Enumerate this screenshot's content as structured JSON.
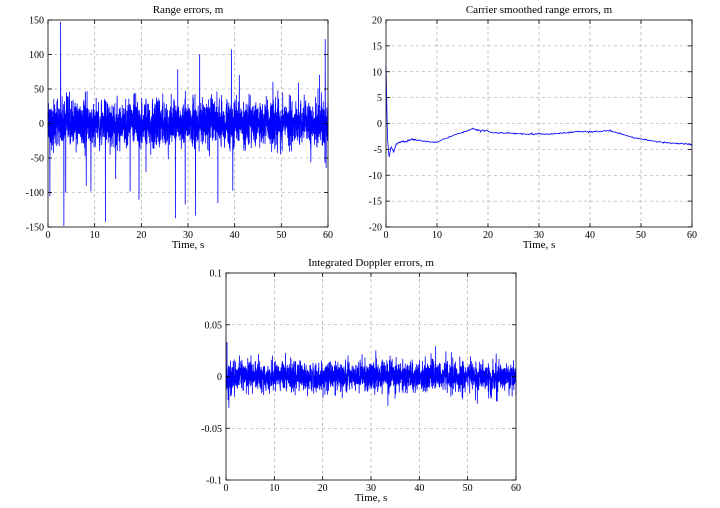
{
  "chart_data": [
    {
      "id": "range",
      "type": "line",
      "title": "Range errors, m",
      "xlabel": "Time, s",
      "ylabel": "",
      "xlim": [
        0,
        60
      ],
      "ylim": [
        -150,
        150
      ],
      "xticks": [
        0,
        10,
        20,
        30,
        40,
        50,
        60
      ],
      "yticks": [
        -150,
        -100,
        -50,
        0,
        50,
        100,
        150
      ],
      "grid": true,
      "color": "#0000ff",
      "noise_sd": 17,
      "spikes": [
        {
          "x": 0.4,
          "y": -105
        },
        {
          "x": 2.7,
          "y": 147
        },
        {
          "x": 3.4,
          "y": -148
        },
        {
          "x": 3.8,
          "y": -100
        },
        {
          "x": 8.2,
          "y": -90
        },
        {
          "x": 9.2,
          "y": -98
        },
        {
          "x": 12.3,
          "y": -142
        },
        {
          "x": 14.5,
          "y": -80
        },
        {
          "x": 17.6,
          "y": -98
        },
        {
          "x": 19.5,
          "y": -110
        },
        {
          "x": 21.0,
          "y": -70
        },
        {
          "x": 27.3,
          "y": -137
        },
        {
          "x": 27.8,
          "y": 78
        },
        {
          "x": 29.4,
          "y": -117
        },
        {
          "x": 31.6,
          "y": -133
        },
        {
          "x": 32.5,
          "y": 100
        },
        {
          "x": 36.4,
          "y": -115
        },
        {
          "x": 39.3,
          "y": 107
        },
        {
          "x": 39.6,
          "y": -97
        },
        {
          "x": 41.0,
          "y": 70
        },
        {
          "x": 48.2,
          "y": 60
        },
        {
          "x": 52.2,
          "y": -40
        },
        {
          "x": 58.2,
          "y": 70
        },
        {
          "x": 59.4,
          "y": 122
        }
      ]
    },
    {
      "id": "carrier",
      "type": "line",
      "title": "Carrier smoothed range errors, m",
      "xlabel": "Time, s",
      "ylabel": "",
      "xlim": [
        0,
        60
      ],
      "ylim": [
        -20,
        20
      ],
      "xticks": [
        0,
        10,
        20,
        30,
        40,
        50,
        60
      ],
      "yticks": [
        -20,
        -15,
        -10,
        -5,
        0,
        5,
        10,
        15,
        20
      ],
      "grid": true,
      "color": "#0000ff",
      "x": [
        0,
        0.3,
        0.6,
        1,
        1.5,
        2,
        3,
        4,
        5,
        6,
        8,
        10,
        12,
        14,
        16,
        17,
        18,
        20,
        22,
        24,
        26,
        28,
        30,
        32,
        34,
        36,
        38,
        40,
        42,
        44,
        46,
        48,
        50,
        52,
        54,
        56,
        58,
        60
      ],
      "y": [
        11,
        -3,
        -6.5,
        -4.5,
        -5.5,
        -4,
        -3.5,
        -3.5,
        -3,
        -3.2,
        -3.5,
        -3.6,
        -2.8,
        -2,
        -1.4,
        -1,
        -1.3,
        -1.5,
        -1.9,
        -1.8,
        -2,
        -2.1,
        -2,
        -2.1,
        -1.9,
        -1.7,
        -1.5,
        -1.6,
        -1.5,
        -1.4,
        -2,
        -2.6,
        -3,
        -3.3,
        -3.6,
        -3.8,
        -3.9,
        -4
      ]
    },
    {
      "id": "doppler",
      "type": "line",
      "title": "Integrated Doppler errors, m",
      "xlabel": "Time, s",
      "ylabel": "",
      "xlim": [
        0,
        60
      ],
      "ylim": [
        -0.1,
        0.1
      ],
      "xticks": [
        0,
        10,
        20,
        30,
        40,
        50,
        60
      ],
      "yticks": [
        -0.1,
        -0.05,
        0,
        0.05,
        0.1
      ],
      "grid": true,
      "color": "#0000ff",
      "noise_sd": 0.0075,
      "spikes": [
        {
          "x": 0.2,
          "y": 0.033
        },
        {
          "x": 0.6,
          "y": -0.03
        },
        {
          "x": 31.0,
          "y": 0.025
        },
        {
          "x": 33.5,
          "y": -0.028
        },
        {
          "x": 45.5,
          "y": 0.024
        },
        {
          "x": 52.0,
          "y": -0.026
        }
      ]
    }
  ]
}
